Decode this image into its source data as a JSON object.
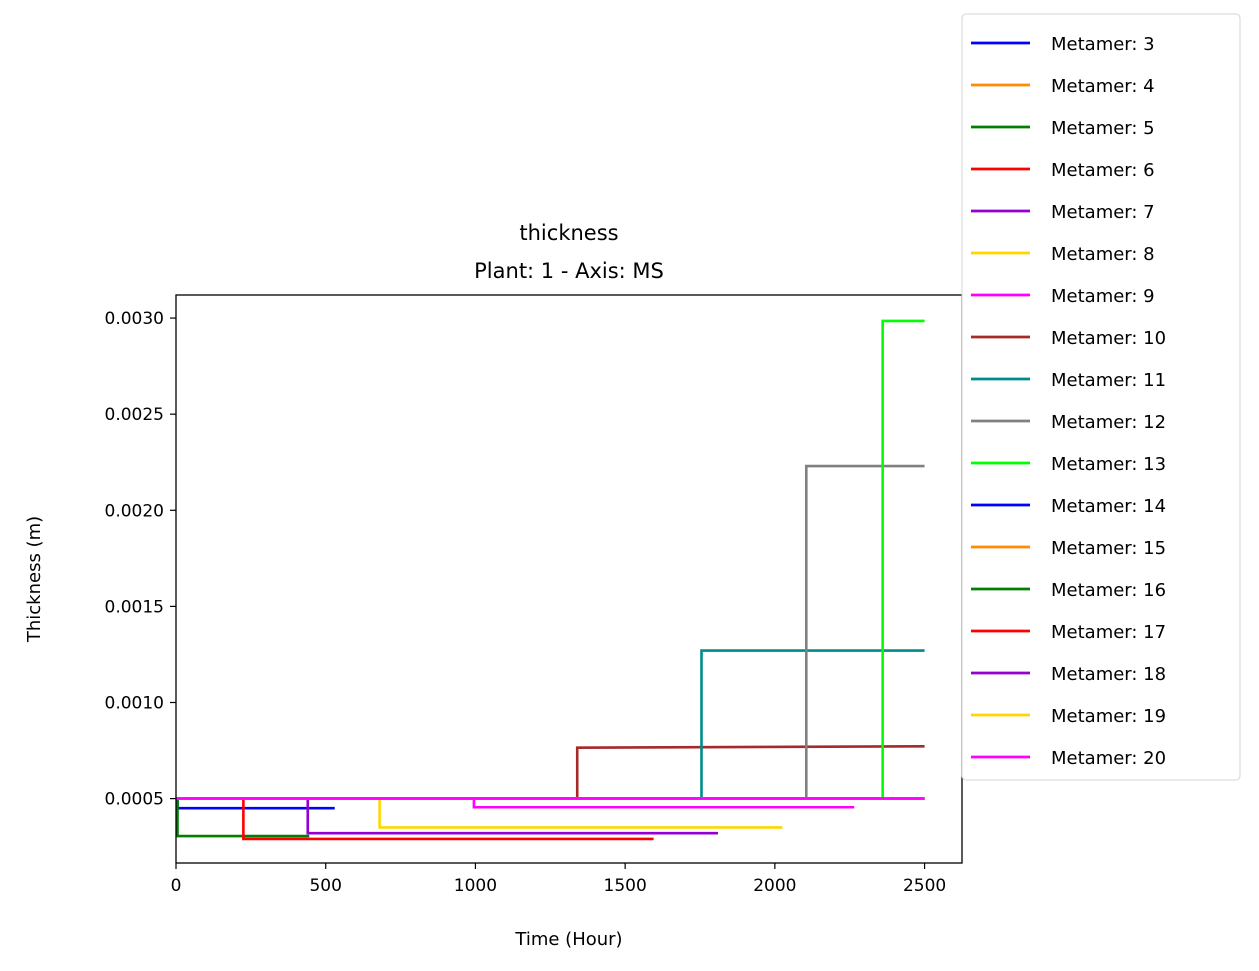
{
  "chart_data": {
    "type": "line",
    "title": "thickness",
    "subtitle": "Plant: 1 - Axis: MS",
    "xlabel": "Time (Hour)",
    "ylabel": "Thickness (m)",
    "xlim": [
      0,
      2625
    ],
    "ylim": [
      0.000165,
      0.00312
    ],
    "xticks": [
      0,
      500,
      1000,
      1500,
      2000,
      2500
    ],
    "xtick_labels": [
      "0",
      "500",
      "1000",
      "1500",
      "2000",
      "2500"
    ],
    "yticks": [
      0.0005,
      0.001,
      0.0015,
      0.002,
      0.0025,
      0.003
    ],
    "ytick_labels": [
      "0.0005",
      "0.0010",
      "0.0015",
      "0.0020",
      "0.0025",
      "0.0030"
    ],
    "grid": false,
    "legend_position": "right",
    "series": [
      {
        "name": "Metamer: 3",
        "color": "#0000ff",
        "x": [
          0,
          5,
          5,
          530
        ],
        "y": [
          0.0005,
          0.0005,
          0.00045,
          0.00045
        ]
      },
      {
        "name": "Metamer: 4",
        "color": "#ff8c00",
        "x": [
          0,
          1130
        ],
        "y": [
          0.0005,
          0.0005
        ]
      },
      {
        "name": "Metamer: 5",
        "color": "#008000",
        "x": [
          0,
          5,
          5,
          445
        ],
        "y": [
          0.0005,
          0.0005,
          0.000305,
          0.000305
        ]
      },
      {
        "name": "Metamer: 6",
        "color": "#ff0000",
        "x": [
          0,
          225,
          225,
          1595
        ],
        "y": [
          0.0005,
          0.0005,
          0.00029,
          0.00029
        ]
      },
      {
        "name": "Metamer: 7",
        "color": "#9400d3",
        "x": [
          0,
          440,
          440,
          1810
        ],
        "y": [
          0.0005,
          0.0005,
          0.00032,
          0.00032
        ]
      },
      {
        "name": "Metamer: 8",
        "color": "#ffd700",
        "x": [
          0,
          680,
          680,
          2025
        ],
        "y": [
          0.0005,
          0.0005,
          0.00035,
          0.00035
        ]
      },
      {
        "name": "Metamer: 9",
        "color": "#ff00ff",
        "x": [
          0,
          995,
          995,
          2265
        ],
        "y": [
          0.0005,
          0.0005,
          0.000455,
          0.000455
        ]
      },
      {
        "name": "Metamer: 10",
        "color": "#a52a2a",
        "x": [
          0,
          1340,
          1340,
          2500
        ],
        "y": [
          0.0005,
          0.0005,
          0.000765,
          0.000772
        ]
      },
      {
        "name": "Metamer: 11",
        "color": "#008b8b",
        "x": [
          0,
          1755,
          1755,
          2500
        ],
        "y": [
          0.0005,
          0.0005,
          0.00127,
          0.00127
        ]
      },
      {
        "name": "Metamer: 12",
        "color": "#808080",
        "x": [
          0,
          2105,
          2105,
          2500
        ],
        "y": [
          0.0005,
          0.0005,
          0.00223,
          0.00223
        ]
      },
      {
        "name": "Metamer: 13",
        "color": "#00ff00",
        "x": [
          0,
          2360,
          2360,
          2500
        ],
        "y": [
          0.0005,
          0.0005,
          0.002985,
          0.002985
        ]
      },
      {
        "name": "Metamer: 14",
        "color": "#0000ff",
        "x": [
          0,
          2500
        ],
        "y": [
          0.0005,
          0.0005
        ]
      },
      {
        "name": "Metamer: 15",
        "color": "#ff8c00",
        "x": [
          0,
          2500
        ],
        "y": [
          0.0005,
          0.0005
        ]
      },
      {
        "name": "Metamer: 16",
        "color": "#008000",
        "x": [
          0,
          2500
        ],
        "y": [
          0.0005,
          0.0005
        ]
      },
      {
        "name": "Metamer: 17",
        "color": "#ff0000",
        "x": [
          0,
          2500
        ],
        "y": [
          0.0005,
          0.0005
        ]
      },
      {
        "name": "Metamer: 18",
        "color": "#9400d3",
        "x": [
          0,
          2500
        ],
        "y": [
          0.0005,
          0.0005
        ]
      },
      {
        "name": "Metamer: 19",
        "color": "#ffd700",
        "x": [
          0,
          2500
        ],
        "y": [
          0.0005,
          0.0005
        ]
      },
      {
        "name": "Metamer: 20",
        "color": "#ff00ff",
        "x": [
          0,
          2500
        ],
        "y": [
          0.0005,
          0.0005
        ]
      }
    ]
  }
}
